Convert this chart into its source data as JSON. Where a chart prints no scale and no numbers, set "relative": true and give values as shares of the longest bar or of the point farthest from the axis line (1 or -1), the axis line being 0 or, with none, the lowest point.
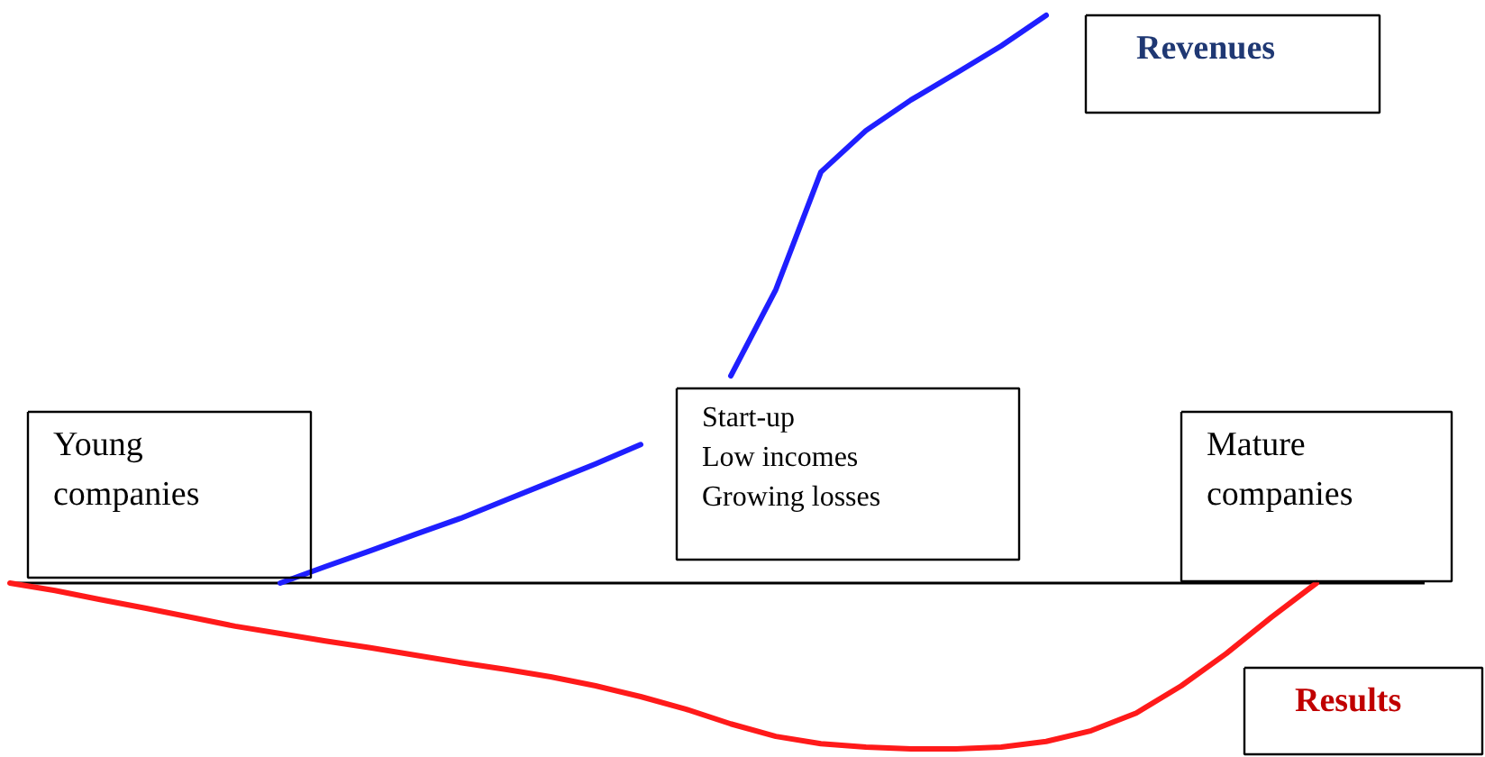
{
  "chart_data": {
    "type": "line",
    "relative": true,
    "legend": false,
    "categories": [
      null,
      null,
      null,
      null,
      null,
      null,
      null,
      null,
      null,
      null,
      null,
      null,
      null,
      null,
      null,
      null,
      null,
      null,
      null,
      null,
      null,
      null,
      null,
      null,
      null,
      null,
      null,
      null,
      null,
      null,
      null,
      null
    ],
    "series": [
      {
        "name": "Revenues",
        "color": "#1f1fff",
        "values": [
          null,
          null,
          null,
          null,
          null,
          null,
          0,
          0.029,
          0.057,
          0.086,
          0.114,
          0.146,
          0.178,
          0.21,
          0.244,
          null,
          0.365,
          0.517,
          0.724,
          0.797,
          0.851,
          0.898,
          0.946,
          1.0,
          null,
          null,
          null,
          null,
          null,
          null,
          null,
          null
        ]
      },
      {
        "name": "Results",
        "color": "#ff1a1a",
        "values": [
          0,
          -0.013,
          -0.029,
          -0.044,
          -0.06,
          -0.076,
          -0.089,
          -0.102,
          -0.114,
          -0.127,
          -0.14,
          -0.152,
          -0.165,
          -0.181,
          -0.2,
          -0.222,
          -0.248,
          -0.27,
          -0.283,
          -0.289,
          -0.292,
          -0.292,
          -0.289,
          -0.279,
          -0.26,
          -0.229,
          -0.181,
          -0.124,
          -0.06,
          0,
          null,
          null
        ]
      }
    ],
    "annotations": [
      "Young\ncompanies",
      "Start-up\nLow incomes\nGrowing losses",
      "Mature\ncompanies"
    ]
  }
}
